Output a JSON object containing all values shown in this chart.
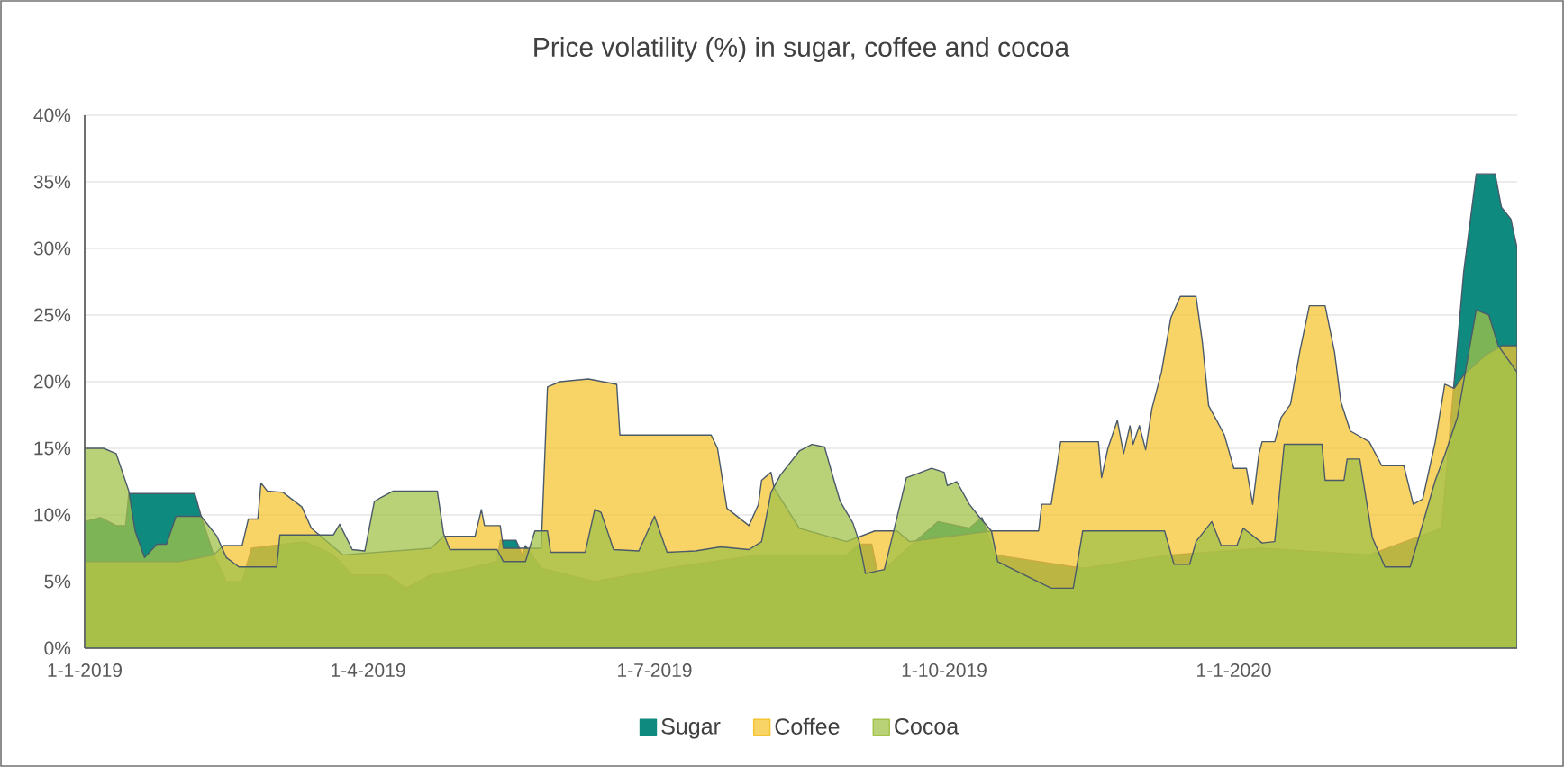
{
  "chart_data": {
    "type": "area",
    "title": "Price volatility (%) in sugar, coffee and cocoa",
    "xlim": [
      "2019-01-01",
      "2020-03-31"
    ],
    "xticks": [
      {
        "value": "2019-01-01",
        "label": "1-1-2019"
      },
      {
        "value": "2019-04-01",
        "label": "1-4-2019"
      },
      {
        "value": "2019-07-01",
        "label": "1-7-2019"
      },
      {
        "value": "2019-10-01",
        "label": "1-10-2019"
      },
      {
        "value": "2020-01-01",
        "label": "1-1-2020"
      }
    ],
    "ylim": [
      0,
      40
    ],
    "yticks": [
      {
        "value": 0,
        "label": "0%"
      },
      {
        "value": 5,
        "label": "5%"
      },
      {
        "value": 10,
        "label": "10%"
      },
      {
        "value": 15,
        "label": "15%"
      },
      {
        "value": 20,
        "label": "20%"
      },
      {
        "value": 25,
        "label": "25%"
      },
      {
        "value": 30,
        "label": "30%"
      },
      {
        "value": 35,
        "label": "35%"
      },
      {
        "value": 40,
        "label": "40%"
      }
    ],
    "grid": "y",
    "legend": "bottom",
    "series": [
      {
        "name": "Sugar",
        "color": "#0e8a7e",
        "x": [
          "2019-01-01",
          "2019-01-06",
          "2019-01-11",
          "2019-01-14",
          "2019-01-15",
          "2019-02-05",
          "2019-02-07",
          "2019-02-11",
          "2019-02-15",
          "2019-02-20",
          "2019-02-23",
          "2019-03-12",
          "2019-03-21",
          "2019-03-27",
          "2019-04-07",
          "2019-04-13",
          "2019-04-21",
          "2019-05-03",
          "2019-05-12",
          "2019-05-13",
          "2019-05-18",
          "2019-05-20",
          "2019-05-21",
          "2019-05-26",
          "2019-06-12",
          "2019-07-05",
          "2019-08-03",
          "2019-08-31",
          "2019-09-04",
          "2019-09-08",
          "2019-09-10",
          "2019-09-17",
          "2019-09-29",
          "2019-10-09",
          "2019-10-13",
          "2019-10-17",
          "2019-11-14",
          "2019-12-12",
          "2020-01-10",
          "2020-02-13",
          "2020-03-07",
          "2020-03-10",
          "2020-03-14",
          "2020-03-18",
          "2020-03-24",
          "2020-03-26",
          "2020-03-29",
          "2020-03-31"
        ],
        "values": [
          9.5,
          9.8,
          9.2,
          9.2,
          11.6,
          11.6,
          9.9,
          7.0,
          5.0,
          5.0,
          7.5,
          8.0,
          7.0,
          5.5,
          5.5,
          4.5,
          5.5,
          6.0,
          6.5,
          8.1,
          8.1,
          7.0,
          7.7,
          6.0,
          5.0,
          6.0,
          7.0,
          7.0,
          7.8,
          7.8,
          5.5,
          7.0,
          9.5,
          9.0,
          9.8,
          7.0,
          6.0,
          7.0,
          7.5,
          7.0,
          9.0,
          17.3,
          28.2,
          35.6,
          35.6,
          33.1,
          32.2,
          30.0
        ]
      },
      {
        "name": "Coffee",
        "color": "#f5c431",
        "x": [
          "2019-01-01",
          "2019-01-31",
          "2019-02-11",
          "2019-02-14",
          "2019-02-20",
          "2019-02-22",
          "2019-02-25",
          "2019-02-26",
          "2019-02-28",
          "2019-03-05",
          "2019-03-11",
          "2019-03-14",
          "2019-03-24",
          "2019-04-21",
          "2019-04-25",
          "2019-05-05",
          "2019-05-07",
          "2019-05-08",
          "2019-05-13",
          "2019-05-14",
          "2019-05-26",
          "2019-05-28",
          "2019-06-01",
          "2019-06-10",
          "2019-06-19",
          "2019-06-20",
          "2019-07-19",
          "2019-07-21",
          "2019-07-24",
          "2019-07-31",
          "2019-08-03",
          "2019-08-04",
          "2019-08-07",
          "2019-08-08",
          "2019-08-16",
          "2019-08-31",
          "2019-09-09",
          "2019-09-16",
          "2019-09-20",
          "2019-10-16",
          "2019-10-31",
          "2019-11-01",
          "2019-11-04",
          "2019-11-07",
          "2019-11-19",
          "2019-11-20",
          "2019-11-22",
          "2019-11-25",
          "2019-11-27",
          "2019-11-29",
          "2019-11-30",
          "2019-12-02",
          "2019-12-04",
          "2019-12-06",
          "2019-12-09",
          "2019-12-12",
          "2019-12-15",
          "2019-12-20",
          "2019-12-22",
          "2019-12-24",
          "2019-12-27",
          "2019-12-29",
          "2020-01-01",
          "2020-01-05",
          "2020-01-07",
          "2020-01-09",
          "2020-01-10",
          "2020-01-14",
          "2020-01-16",
          "2020-01-19",
          "2020-01-22",
          "2020-01-25",
          "2020-01-30",
          "2020-02-02",
          "2020-02-04",
          "2020-02-07",
          "2020-02-13",
          "2020-02-17",
          "2020-02-24",
          "2020-02-27",
          "2020-03-01",
          "2020-03-05",
          "2020-03-08",
          "2020-03-11",
          "2020-03-14",
          "2020-03-21",
          "2020-03-26",
          "2020-03-31"
        ],
        "values": [
          6.5,
          6.5,
          7.0,
          7.7,
          7.7,
          9.7,
          9.7,
          12.4,
          11.8,
          11.7,
          10.6,
          9.0,
          7.0,
          7.5,
          8.4,
          8.4,
          10.4,
          9.2,
          9.2,
          7.5,
          7.5,
          19.6,
          20.0,
          20.2,
          19.8,
          16.0,
          16.0,
          15.0,
          10.5,
          9.2,
          10.8,
          12.6,
          13.2,
          12.0,
          9.0,
          8.0,
          8.8,
          8.8,
          8.0,
          8.8,
          8.8,
          10.8,
          10.8,
          15.5,
          15.5,
          12.8,
          15.0,
          17.1,
          14.6,
          16.7,
          15.3,
          16.7,
          14.9,
          18.0,
          20.7,
          24.8,
          26.4,
          26.4,
          23.0,
          18.2,
          16.9,
          16.0,
          13.5,
          13.5,
          10.8,
          14.6,
          15.5,
          15.5,
          17.3,
          18.3,
          22.3,
          25.7,
          25.7,
          22.2,
          18.5,
          16.3,
          15.5,
          13.7,
          13.7,
          10.8,
          11.2,
          15.5,
          19.8,
          19.5,
          20.5,
          22.0,
          22.7,
          22.7
        ]
      },
      {
        "name": "Cocoa",
        "color": "#a2c24a",
        "x": [
          "2019-01-01",
          "2019-01-07",
          "2019-01-11",
          "2019-01-15",
          "2019-01-17",
          "2019-01-20",
          "2019-01-24",
          "2019-01-27",
          "2019-01-30",
          "2019-02-07",
          "2019-02-12",
          "2019-02-15",
          "2019-02-19",
          "2019-03-03",
          "2019-03-04",
          "2019-03-21",
          "2019-03-23",
          "2019-03-27",
          "2019-03-31",
          "2019-04-03",
          "2019-04-05",
          "2019-04-09",
          "2019-04-23",
          "2019-04-25",
          "2019-04-27",
          "2019-05-12",
          "2019-05-14",
          "2019-05-21",
          "2019-05-24",
          "2019-05-28",
          "2019-05-29",
          "2019-06-09",
          "2019-06-12",
          "2019-06-14",
          "2019-06-18",
          "2019-06-26",
          "2019-07-01",
          "2019-07-05",
          "2019-07-14",
          "2019-07-22",
          "2019-07-31",
          "2019-08-04",
          "2019-08-07",
          "2019-08-10",
          "2019-08-16",
          "2019-08-20",
          "2019-08-24",
          "2019-08-27",
          "2019-08-29",
          "2019-09-02",
          "2019-09-04",
          "2019-09-06",
          "2019-09-12",
          "2019-09-16",
          "2019-09-19",
          "2019-09-27",
          "2019-10-01",
          "2019-10-02",
          "2019-10-05",
          "2019-10-09",
          "2019-10-12",
          "2019-10-16",
          "2019-10-18",
          "2019-10-23",
          "2019-11-04",
          "2019-11-11",
          "2019-11-14",
          "2019-12-10",
          "2019-12-13",
          "2019-12-18",
          "2019-12-20",
          "2019-12-25",
          "2019-12-28",
          "2020-01-02",
          "2020-01-04",
          "2020-01-10",
          "2020-01-14",
          "2020-01-17",
          "2020-01-29",
          "2020-01-30",
          "2020-02-05",
          "2020-02-06",
          "2020-02-10",
          "2020-02-14",
          "2020-02-18",
          "2020-02-26",
          "2020-02-28",
          "2020-03-05",
          "2020-03-08",
          "2020-03-12",
          "2020-03-18",
          "2020-03-22",
          "2020-03-25",
          "2020-03-31"
        ],
        "values": [
          15.0,
          15.0,
          14.6,
          11.8,
          8.8,
          6.8,
          7.8,
          7.8,
          9.9,
          9.9,
          8.4,
          6.8,
          6.1,
          6.1,
          8.5,
          8.5,
          9.3,
          7.4,
          7.3,
          11.0,
          11.3,
          11.8,
          11.8,
          8.6,
          7.4,
          7.4,
          6.5,
          6.5,
          8.8,
          8.8,
          7.2,
          7.2,
          10.4,
          10.2,
          7.4,
          7.3,
          9.9,
          7.2,
          7.3,
          7.6,
          7.4,
          8.0,
          11.7,
          13.0,
          14.8,
          15.3,
          15.1,
          12.6,
          11.0,
          9.4,
          8.0,
          5.6,
          5.9,
          9.8,
          12.8,
          13.5,
          13.2,
          12.2,
          12.5,
          10.8,
          9.9,
          8.8,
          6.5,
          5.9,
          4.5,
          4.5,
          8.8,
          8.8,
          6.3,
          6.3,
          8.0,
          9.5,
          7.7,
          7.7,
          9.0,
          7.9,
          8.0,
          15.3,
          15.3,
          12.6,
          12.6,
          14.2,
          14.2,
          8.3,
          6.1,
          6.1,
          7.7,
          12.6,
          14.5,
          17.3,
          25.4,
          25.0,
          22.7,
          20.7
        ]
      }
    ]
  }
}
